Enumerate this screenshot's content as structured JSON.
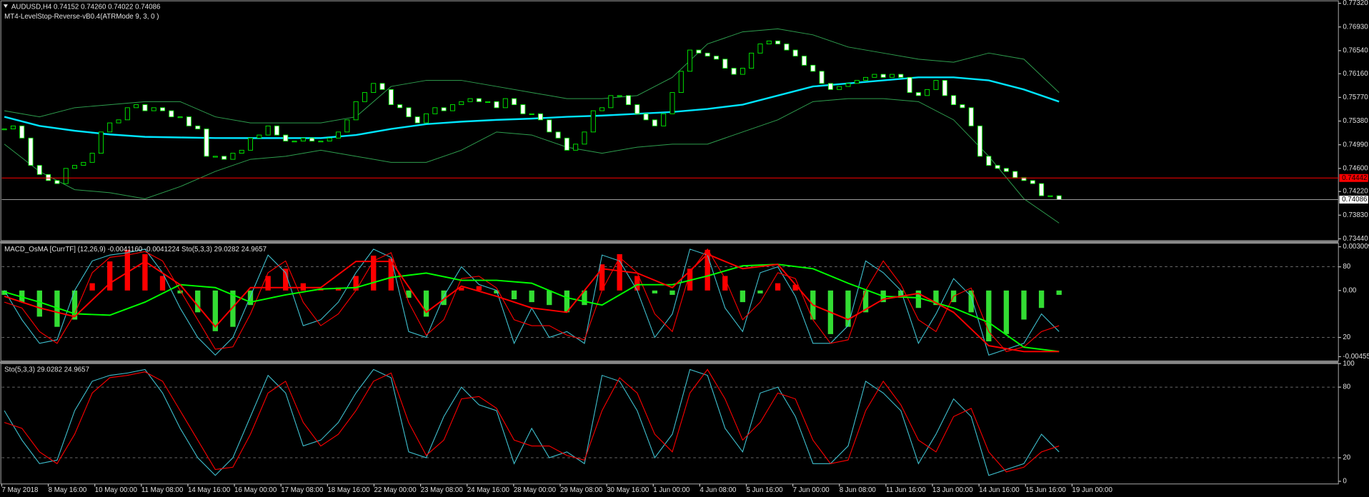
{
  "chart_data": [
    {
      "type": "candlestick",
      "title": "AUDUSD,H4  0.74152 0.74260 0.74022 0.74086",
      "subtitle": "MT4-LevelStop-Reverse-vB0.4(ATRMode 9, 3, 0 )",
      "up_color": "#000000",
      "down_color": "#ffffff",
      "candle_stroke": "#00ff00",
      "closes": [
        0.7525,
        0.753,
        0.751,
        0.7465,
        0.745,
        0.744,
        0.7435,
        0.746,
        0.7465,
        0.747,
        0.7485,
        0.752,
        0.7535,
        0.754,
        0.756,
        0.7565,
        0.7555,
        0.756,
        0.7555,
        0.7545,
        0.7545,
        0.753,
        0.7525,
        0.748,
        0.748,
        0.7475,
        0.7485,
        0.749,
        0.751,
        0.7515,
        0.753,
        0.7515,
        0.7505,
        0.7505,
        0.751,
        0.7505,
        0.7505,
        0.751,
        0.752,
        0.754,
        0.757,
        0.7585,
        0.76,
        0.759,
        0.7565,
        0.756,
        0.7545,
        0.7535,
        0.755,
        0.756,
        0.7555,
        0.7565,
        0.757,
        0.7575,
        0.757,
        0.757,
        0.756,
        0.7575,
        0.7565,
        0.755,
        0.755,
        0.754,
        0.752,
        0.751,
        0.749,
        0.75,
        0.752,
        0.7555,
        0.756,
        0.758,
        0.758,
        0.7565,
        0.755,
        0.754,
        0.753,
        0.755,
        0.7585,
        0.762,
        0.7655,
        0.765,
        0.7645,
        0.764,
        0.7625,
        0.7615,
        0.7625,
        0.765,
        0.7665,
        0.767,
        0.7665,
        0.7655,
        0.7645,
        0.763,
        0.762,
        0.76,
        0.759,
        0.7595,
        0.76,
        0.7605,
        0.761,
        0.7615,
        0.761,
        0.7615,
        0.761,
        0.7585,
        0.758,
        0.759,
        0.7605,
        0.758,
        0.7565,
        0.756,
        0.753,
        0.748,
        0.7465,
        0.746,
        0.7455,
        0.7445,
        0.744,
        0.7435,
        0.7415,
        0.7415,
        0.74086
      ],
      "lines": [
        {
          "color": "#00e5ff",
          "width": 2,
          "values": [
            0.7545,
            0.753,
            0.7522,
            0.7516,
            0.7512,
            0.7511,
            0.751,
            0.751,
            0.751,
            0.751,
            0.7515,
            0.7525,
            0.7533,
            0.7537,
            0.754,
            0.7542,
            0.7545,
            0.7547,
            0.755,
            0.7553,
            0.7558,
            0.7565,
            0.758,
            0.7595,
            0.76,
            0.7605,
            0.761,
            0.761,
            0.7605,
            0.759,
            0.757
          ]
        },
        {
          "color": "#2e9e4e",
          "width": 0.8,
          "values": [
            0.7555,
            0.7545,
            0.756,
            0.7565,
            0.757,
            0.757,
            0.7545,
            0.7535,
            0.7535,
            0.7535,
            0.7545,
            0.7595,
            0.7605,
            0.7605,
            0.7595,
            0.7585,
            0.7575,
            0.7575,
            0.758,
            0.761,
            0.7665,
            0.7685,
            0.769,
            0.768,
            0.766,
            0.765,
            0.764,
            0.7635,
            0.765,
            0.764,
            0.7585
          ]
        },
        {
          "color": "#2e9e4e",
          "width": 0.8,
          "values": [
            0.75,
            0.7455,
            0.7425,
            0.742,
            0.741,
            0.743,
            0.7455,
            0.7475,
            0.748,
            0.749,
            0.748,
            0.747,
            0.747,
            0.749,
            0.752,
            0.7515,
            0.7495,
            0.7485,
            0.7495,
            0.75,
            0.75,
            0.752,
            0.754,
            0.757,
            0.7575,
            0.7575,
            0.757,
            0.754,
            0.748,
            0.741,
            0.737
          ]
        }
      ],
      "hlines": [
        {
          "value": 0.74442,
          "color": "#ff0000"
        },
        {
          "value": 0.74086,
          "color": "#9a9a9a"
        }
      ],
      "ylim": [
        0.7341,
        0.7736
      ],
      "yticks": [
        {
          "value": 0.7732,
          "label": "0.77320"
        },
        {
          "value": 0.7693,
          "label": "0.76930"
        },
        {
          "value": 0.7654,
          "label": "0.76540"
        },
        {
          "value": 0.7616,
          "label": "0.76160"
        },
        {
          "value": 0.7577,
          "label": "0.75770"
        },
        {
          "value": 0.7538,
          "label": "0.75380"
        },
        {
          "value": 0.7499,
          "label": "0.74990"
        },
        {
          "value": 0.746,
          "label": "0.74600"
        },
        {
          "value": 0.7422,
          "label": "0.74220"
        },
        {
          "value": 0.7383,
          "label": "0.73830"
        },
        {
          "value": 0.7344,
          "label": "0.73440"
        }
      ]
    },
    {
      "type": "bar",
      "title": "MACD_OsMA [CurrTF] (12,26,9) -0.0041160 -0.0041224  Sto(5,3,3) 29.0282 24.9657",
      "up_color": "#ff0000",
      "down_color": "#33dd33",
      "values": [
        -0.0003,
        -0.0008,
        -0.0018,
        -0.0025,
        -0.002,
        0.0005,
        0.002,
        0.0028,
        0.0025,
        0.001,
        -0.0002,
        -0.0015,
        -0.0028,
        -0.0025,
        -0.001,
        0.001,
        0.0015,
        0.0005,
        0.0001,
        0.0002,
        0.001,
        0.0024,
        0.0022,
        -0.0005,
        -0.0018,
        -0.001,
        0.0002,
        0.0003,
        -0.0002,
        -0.0006,
        -0.0008,
        -0.001,
        -0.0015,
        -0.001,
        0.0018,
        0.0025,
        0.001,
        -0.0002,
        -0.0003,
        0.0015,
        0.0028,
        0.001,
        -0.0008,
        -0.0002,
        0.0005,
        0.0004,
        -0.002,
        -0.003,
        -0.0025,
        -0.0015,
        -0.0008,
        -0.0005,
        -0.0012,
        -0.001,
        -0.0008,
        -0.0015,
        -0.0035,
        -0.003,
        -0.002,
        -0.0012,
        -0.0003
      ],
      "series": [
        {
          "color": "#00ff00",
          "values": [
            -0.0001,
            -0.0008,
            -0.0016,
            -0.0017,
            -0.0008,
            0.0004,
            0.0002,
            -0.0008,
            -0.0003,
            0.0001,
            0.0002,
            0.0009,
            0.0012,
            0.0007,
            0.0007,
            0.0005,
            -0.0005,
            -0.001,
            0.0004,
            0.0004,
            0.001,
            0.0017,
            0.0018,
            0.0015,
            0.0005,
            -0.0004,
            -0.0005,
            -0.0012,
            -0.0022,
            -0.0039,
            -0.0042
          ]
        },
        {
          "color": "#ff0000",
          "values": [
            -0.0004,
            -0.0012,
            -0.0018,
            0.0005,
            0.002,
            0.0004,
            -0.0025,
            0.0002,
            0.0002,
            0.0002,
            0.002,
            0.002,
            -0.0015,
            0.0003,
            -0.0004,
            -0.0012,
            -0.0015,
            0.0015,
            0.0012,
            0.0002,
            0.0025,
            0.0015,
            0.0018,
            -0.001,
            -0.002,
            -0.0006,
            -0.0002,
            -0.0015,
            -0.0038,
            -0.0042,
            -0.0042
          ]
        }
      ],
      "ylim": [
        -0.00485,
        0.00325
      ],
      "yticks": [
        0.003009,
        {
          "value": 0,
          "label": "0.00"
        },
        -0.004553
      ],
      "y2lim": [
        0,
        100
      ],
      "y2ticks": [
        80,
        20
      ]
    },
    {
      "type": "line",
      "title": "Sto(5,3,3) 29.0282 24.9657",
      "series": [
        {
          "color": "#3fc1d0",
          "values": [
            60,
            35,
            15,
            18,
            60,
            85,
            90,
            92,
            95,
            75,
            45,
            20,
            5,
            20,
            55,
            90,
            75,
            30,
            35,
            50,
            75,
            95,
            88,
            25,
            20,
            55,
            80,
            65,
            60,
            15,
            45,
            20,
            25,
            15,
            90,
            85,
            60,
            20,
            40,
            95,
            90,
            45,
            25,
            75,
            80,
            55,
            15,
            15,
            30,
            85,
            75,
            60,
            15,
            40,
            70,
            55,
            5,
            10,
            15,
            40,
            25
          ]
        },
        {
          "color": "#ff0000",
          "values": [
            50,
            45,
            25,
            15,
            40,
            75,
            88,
            90,
            93,
            85,
            60,
            35,
            10,
            12,
            40,
            75,
            85,
            50,
            30,
            40,
            60,
            85,
            92,
            50,
            22,
            35,
            70,
            72,
            62,
            35,
            30,
            30,
            22,
            18,
            60,
            88,
            75,
            40,
            25,
            75,
            95,
            70,
            35,
            50,
            75,
            70,
            35,
            15,
            18,
            60,
            85,
            65,
            35,
            25,
            55,
            62,
            25,
            8,
            12,
            25,
            30
          ]
        }
      ],
      "ylim": [
        0,
        100
      ],
      "yticks": [
        100,
        80,
        20,
        0
      ]
    }
  ],
  "time_axis": [
    "7 May 2018",
    "8 May 16:00",
    "10 May 00:00",
    "11 May 08:00",
    "14 May 16:00",
    "16 May 00:00",
    "17 May 08:00",
    "18 May 16:00",
    "22 May 00:00",
    "23 May 08:00",
    "24 May 16:00",
    "28 May 00:00",
    "29 May 08:00",
    "30 May 16:00",
    "1 Jun 00:00",
    "4 Jun 08:00",
    "5 Jun 16:00",
    "7 Jun 00:00",
    "8 Jun 08:00",
    "11 Jun 16:00",
    "13 Jun 00:00",
    "14 Jun 16:00",
    "15 Jun 16:00",
    "19 Jun 00:00"
  ]
}
